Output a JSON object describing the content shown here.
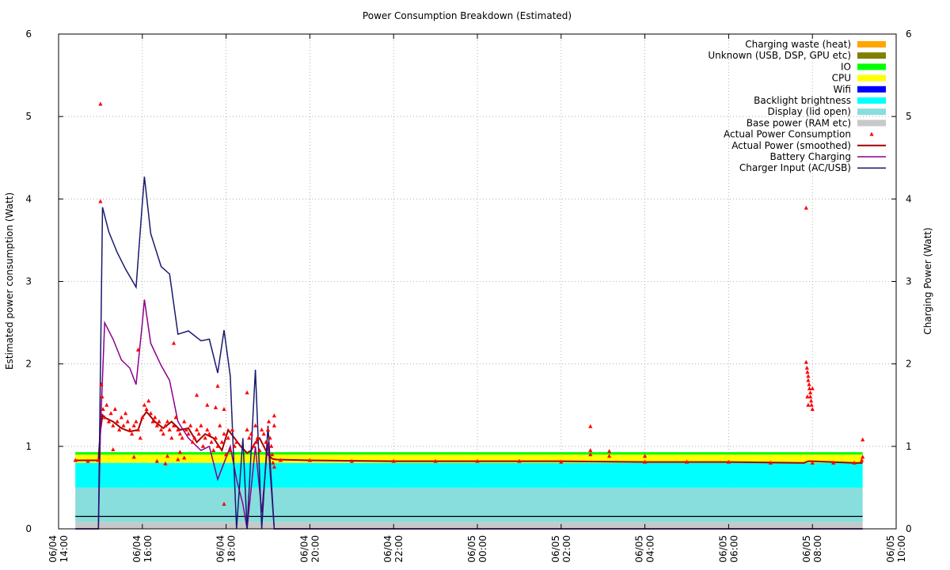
{
  "chart_data": {
    "type": "area",
    "title": "Power Consumption Breakdown (Estimated)",
    "ylabel": "Estimated power consumption (Watt)",
    "y2label": "Charging Power (Watt)",
    "xlabel": "",
    "x_unit": "hours since 06/04 14:00",
    "xlim": [
      0,
      20
    ],
    "ylim": [
      0,
      6
    ],
    "y2lim": [
      0,
      6
    ],
    "grid": true,
    "legend_position": "top-right",
    "x_ticks": [
      {
        "x": 0,
        "date": "06/04",
        "time": "14:00"
      },
      {
        "x": 2,
        "date": "06/04",
        "time": "16:00"
      },
      {
        "x": 4,
        "date": "06/04",
        "time": "18:00"
      },
      {
        "x": 6,
        "date": "06/04",
        "time": "20:00"
      },
      {
        "x": 8,
        "date": "06/04",
        "time": "22:00"
      },
      {
        "x": 10,
        "date": "06/05",
        "time": "00:00"
      },
      {
        "x": 12,
        "date": "06/05",
        "time": "02:00"
      },
      {
        "x": 14,
        "date": "06/05",
        "time": "04:00"
      },
      {
        "x": 16,
        "date": "06/05",
        "time": "06:00"
      },
      {
        "x": 18,
        "date": "06/05",
        "time": "08:00"
      },
      {
        "x": 20,
        "date": "06/05",
        "time": "10:00"
      }
    ],
    "y_ticks": [
      0,
      1,
      2,
      3,
      4,
      5,
      6
    ],
    "y2_ticks": [
      0,
      1,
      2,
      3,
      4,
      5,
      6
    ],
    "stack_range": [
      0.4,
      19.2
    ],
    "stacked_series": [
      {
        "name": "Base power (RAM etc)",
        "color": "#c8c8c8",
        "value": 0.08
      },
      {
        "name": "Display (lid open)",
        "color": "#88dddd",
        "value": 0.42
      },
      {
        "name": "Backlight brightness",
        "color": "#00ffff",
        "value": 0.3
      },
      {
        "name": "Wifi",
        "color": "#0000ff",
        "value": 0.0
      },
      {
        "name": "CPU",
        "color": "#ffff00",
        "value": 0.1
      },
      {
        "name": "IO",
        "color": "#00ff00",
        "value": 0.03
      },
      {
        "name": "Unknown (USB, DSP, GPU etc)",
        "color": "#808000",
        "value": 0.0
      },
      {
        "name": "Charging waste (heat)",
        "color": "#ffa500",
        "value": 0.0
      }
    ],
    "reference_line": {
      "y": 0.15,
      "x_range": [
        0.4,
        19.2
      ],
      "color": "#000000"
    },
    "scatter_series": {
      "name": "Actual Power Consumption",
      "color": "#ff0000",
      "points": [
        [
          0.4,
          0.83
        ],
        [
          0.7,
          0.82
        ],
        [
          0.95,
          0.83
        ],
        [
          1.0,
          5.15
        ],
        [
          1.0,
          3.97
        ],
        [
          1.02,
          1.75
        ],
        [
          1.04,
          1.6
        ],
        [
          1.06,
          1.45
        ],
        [
          1.1,
          1.35
        ],
        [
          1.15,
          1.5
        ],
        [
          1.2,
          1.3
        ],
        [
          1.25,
          1.4
        ],
        [
          1.3,
          1.25
        ],
        [
          1.35,
          1.45
        ],
        [
          1.4,
          1.3
        ],
        [
          1.45,
          1.2
        ],
        [
          1.5,
          1.35
        ],
        [
          1.55,
          1.25
        ],
        [
          1.6,
          1.4
        ],
        [
          1.65,
          1.3
        ],
        [
          1.7,
          1.2
        ],
        [
          1.75,
          1.15
        ],
        [
          1.8,
          1.25
        ],
        [
          1.85,
          1.3
        ],
        [
          1.9,
          1.2
        ],
        [
          1.95,
          1.1
        ],
        [
          2.0,
          1.35
        ],
        [
          2.05,
          1.5
        ],
        [
          2.1,
          1.45
        ],
        [
          2.15,
          1.55
        ],
        [
          2.2,
          1.4
        ],
        [
          2.25,
          1.3
        ],
        [
          2.3,
          1.35
        ],
        [
          2.35,
          1.25
        ],
        [
          2.4,
          1.3
        ],
        [
          2.45,
          1.2
        ],
        [
          2.5,
          1.15
        ],
        [
          2.55,
          1.25
        ],
        [
          2.6,
          1.3
        ],
        [
          2.65,
          1.2
        ],
        [
          2.7,
          1.1
        ],
        [
          2.75,
          1.25
        ],
        [
          2.8,
          1.35
        ],
        [
          2.85,
          1.2
        ],
        [
          2.9,
          1.15
        ],
        [
          2.95,
          1.1
        ],
        [
          3.0,
          1.3
        ],
        [
          3.05,
          1.2
        ],
        [
          3.1,
          1.15
        ],
        [
          3.15,
          1.25
        ],
        [
          3.2,
          1.05
        ],
        [
          3.25,
          1.1
        ],
        [
          3.3,
          1.2
        ],
        [
          3.35,
          1.15
        ],
        [
          3.4,
          1.25
        ],
        [
          3.45,
          1.0
        ],
        [
          3.5,
          1.1
        ],
        [
          3.55,
          1.2
        ],
        [
          3.6,
          1.15
        ],
        [
          3.65,
          1.05
        ],
        [
          3.7,
          0.95
        ],
        [
          3.75,
          1.1
        ],
        [
          3.8,
          1.0
        ],
        [
          3.85,
          1.25
        ],
        [
          3.9,
          1.05
        ],
        [
          3.95,
          1.15
        ],
        [
          4.0,
          0.9
        ],
        [
          4.05,
          1.1
        ],
        [
          4.1,
          0.95
        ],
        [
          4.15,
          1.2
        ],
        [
          4.2,
          1.0
        ],
        [
          4.25,
          1.05
        ],
        [
          4.5,
          1.2
        ],
        [
          4.55,
          1.1
        ],
        [
          4.6,
          1.15
        ],
        [
          4.65,
          1.0
        ],
        [
          4.7,
          1.25
        ],
        [
          4.72,
          1.05
        ],
        [
          4.75,
          1.1
        ],
        [
          4.8,
          0.95
        ],
        [
          4.85,
          1.2
        ],
        [
          4.9,
          1.15
        ],
        [
          4.95,
          1.05
        ],
        [
          5.0,
          1.2
        ],
        [
          5.02,
          1.3
        ],
        [
          5.05,
          1.1
        ],
        [
          5.08,
          1.0
        ],
        [
          5.1,
          0.9
        ],
        [
          5.12,
          0.8
        ],
        [
          5.15,
          1.25
        ],
        [
          1.3,
          0.96
        ],
        [
          1.8,
          0.87
        ],
        [
          1.9,
          2.17
        ],
        [
          2.35,
          0.82
        ],
        [
          2.55,
          0.79
        ],
        [
          2.6,
          0.88
        ],
        [
          2.75,
          2.25
        ],
        [
          2.85,
          0.84
        ],
        [
          2.9,
          0.93
        ],
        [
          3.0,
          0.86
        ],
        [
          3.3,
          1.62
        ],
        [
          3.55,
          1.5
        ],
        [
          3.75,
          1.47
        ],
        [
          3.8,
          1.73
        ],
        [
          3.95,
          1.45
        ],
        [
          3.95,
          0.3
        ],
        [
          4.5,
          1.65
        ],
        [
          5.15,
          1.37
        ],
        [
          5.15,
          0.75
        ],
        [
          5.3,
          0.83
        ],
        [
          6.0,
          0.83
        ],
        [
          7.0,
          0.82
        ],
        [
          8.0,
          0.82
        ],
        [
          9.0,
          0.82
        ],
        [
          10.0,
          0.82
        ],
        [
          11.0,
          0.82
        ],
        [
          12.0,
          0.81
        ],
        [
          12.7,
          1.24
        ],
        [
          12.7,
          0.95
        ],
        [
          12.7,
          0.9
        ],
        [
          13.15,
          0.94
        ],
        [
          13.15,
          0.88
        ],
        [
          14.0,
          0.81
        ],
        [
          14.0,
          0.88
        ],
        [
          15.0,
          0.81
        ],
        [
          16.0,
          0.81
        ],
        [
          17.0,
          0.8
        ],
        [
          17.85,
          3.89
        ],
        [
          17.85,
          2.02
        ],
        [
          17.87,
          1.95
        ],
        [
          17.88,
          1.9
        ],
        [
          17.9,
          1.85
        ],
        [
          17.9,
          1.8
        ],
        [
          17.92,
          1.75
        ],
        [
          17.93,
          1.7
        ],
        [
          17.95,
          1.65
        ],
        [
          17.95,
          1.6
        ],
        [
          17.97,
          1.55
        ],
        [
          17.98,
          1.5
        ],
        [
          18.0,
          1.45
        ],
        [
          18.0,
          1.7
        ],
        [
          17.88,
          1.6
        ],
        [
          17.9,
          1.5
        ],
        [
          18.0,
          0.8
        ],
        [
          18.5,
          0.8
        ],
        [
          19.0,
          0.8
        ],
        [
          19.18,
          0.83
        ],
        [
          19.2,
          0.87
        ],
        [
          19.2,
          1.08
        ]
      ]
    },
    "line_series": [
      {
        "name": "Actual Power (smoothed)",
        "color": "#a00000",
        "axis": "y",
        "x": [
          0.4,
          0.95,
          1.0,
          1.05,
          1.1,
          1.3,
          1.5,
          1.7,
          1.9,
          2.0,
          2.1,
          2.3,
          2.5,
          2.7,
          2.9,
          3.1,
          3.3,
          3.5,
          3.7,
          3.9,
          4.05,
          4.2,
          4.35,
          4.5,
          4.6,
          4.7,
          4.8,
          4.9,
          5.0,
          5.1,
          5.2,
          6,
          8,
          10,
          12,
          14,
          16,
          17.8,
          17.9,
          18.0,
          19.0,
          19.2
        ],
        "y": [
          0.83,
          0.83,
          1.2,
          1.38,
          1.35,
          1.3,
          1.22,
          1.18,
          1.2,
          1.35,
          1.42,
          1.3,
          1.22,
          1.3,
          1.2,
          1.22,
          1.05,
          1.15,
          1.1,
          0.95,
          1.2,
          1.1,
          1.0,
          0.92,
          0.95,
          1.05,
          1.1,
          1.0,
          0.9,
          0.85,
          0.84,
          0.83,
          0.82,
          0.82,
          0.82,
          0.81,
          0.81,
          0.8,
          0.82,
          0.82,
          0.8,
          0.8
        ]
      },
      {
        "name": "Battery Charging",
        "color": "#8b008b",
        "axis": "y2",
        "x": [
          0.4,
          0.95,
          1.0,
          1.1,
          1.3,
          1.5,
          1.7,
          1.85,
          2.0,
          2.05,
          2.2,
          2.45,
          2.65,
          2.85,
          3.1,
          3.4,
          3.6,
          3.8,
          3.95,
          4.1,
          4.25,
          4.4,
          4.5,
          4.7,
          4.85,
          5.0,
          5.15,
          19.2
        ],
        "y": [
          0.0,
          0.0,
          1.2,
          2.5,
          2.3,
          2.05,
          1.95,
          1.75,
          2.5,
          2.78,
          2.25,
          1.98,
          1.8,
          1.3,
          1.1,
          0.95,
          1.0,
          0.6,
          0.8,
          1.0,
          0.6,
          0.3,
          0.0,
          1.0,
          0.2,
          1.05,
          0.0,
          0.0
        ]
      },
      {
        "name": "Charger Input (AC/USB)",
        "color": "#191970",
        "axis": "y2",
        "x": [
          0.4,
          0.95,
          1.05,
          1.2,
          1.4,
          1.6,
          1.85,
          2.0,
          2.05,
          2.2,
          2.45,
          2.65,
          2.85,
          3.1,
          3.4,
          3.6,
          3.8,
          3.95,
          4.1,
          4.25,
          4.4,
          4.5,
          4.7,
          4.85,
          5.0,
          5.15,
          19.2
        ],
        "y": [
          0.0,
          0.0,
          3.9,
          3.6,
          3.35,
          3.15,
          2.93,
          3.95,
          4.27,
          3.58,
          3.18,
          3.09,
          2.36,
          2.4,
          2.28,
          2.3,
          1.89,
          2.41,
          1.85,
          0.0,
          1.1,
          0.0,
          1.93,
          0.0,
          1.25,
          0.0,
          0.0
        ]
      }
    ],
    "legend": [
      {
        "label": "Charging waste (heat)",
        "kind": "box",
        "color": "#ffa500"
      },
      {
        "label": "Unknown (USB, DSP, GPU etc)",
        "kind": "box",
        "color": "#808000"
      },
      {
        "label": "IO",
        "kind": "box",
        "color": "#00ff00"
      },
      {
        "label": "CPU",
        "kind": "box",
        "color": "#ffff00"
      },
      {
        "label": "Wifi",
        "kind": "box",
        "color": "#0000ff"
      },
      {
        "label": "Backlight brightness",
        "kind": "box",
        "color": "#00ffff"
      },
      {
        "label": "Display (lid open)",
        "kind": "box",
        "color": "#88dddd"
      },
      {
        "label": "Base power (RAM etc)",
        "kind": "box",
        "color": "#c8c8c8"
      },
      {
        "label": "Actual Power Consumption",
        "kind": "point",
        "color": "#ff0000"
      },
      {
        "label": "Actual Power (smoothed)",
        "kind": "line",
        "color": "#a00000"
      },
      {
        "label": "Battery Charging",
        "kind": "line",
        "color": "#8b008b"
      },
      {
        "label": "Charger Input (AC/USB)",
        "kind": "line",
        "color": "#191970"
      }
    ]
  }
}
